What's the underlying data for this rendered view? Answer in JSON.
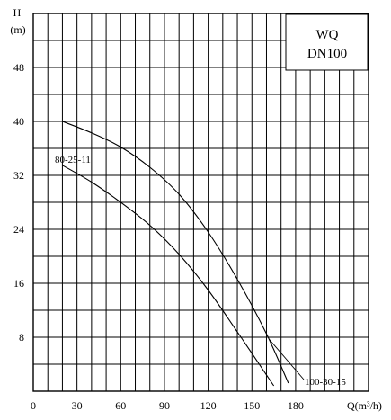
{
  "chart_data": {
    "type": "line",
    "title_lines": [
      "WQ",
      "DN100"
    ],
    "ylabel_lines": [
      "H",
      "(m)"
    ],
    "xlabel": "Q(m³/h)",
    "x_ticks": [
      0,
      30,
      60,
      90,
      120,
      150,
      180
    ],
    "y_ticks": [
      8,
      16,
      24,
      32,
      40,
      48
    ],
    "xlim": [
      0,
      230
    ],
    "ylim": [
      0,
      56
    ],
    "grid": true,
    "series": [
      {
        "name": "100-30-15",
        "x": [
          20,
          40,
          60,
          80,
          100,
          120,
          140,
          160,
          175
        ],
        "y": [
          40,
          38.3,
          36.2,
          33.2,
          29.2,
          23.6,
          16.6,
          8.5,
          1.2
        ]
      },
      {
        "name": "80-25-11",
        "x": [
          20,
          40,
          60,
          80,
          100,
          120,
          140,
          155,
          165
        ],
        "y": [
          33.5,
          31,
          28,
          24.6,
          20.3,
          15,
          8.8,
          4,
          0.8
        ]
      }
    ]
  }
}
